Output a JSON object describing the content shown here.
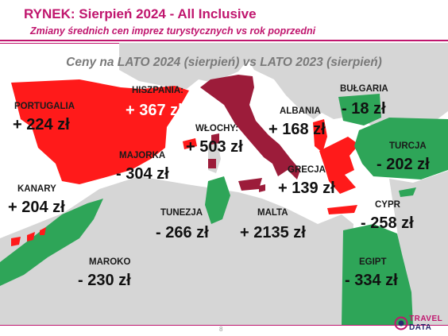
{
  "header": {
    "title": "RYNEK: Sierpień 2024 - All Inclusive",
    "subtitle": "Zmiany średnich cen imprez turystycznych vs rok poprzedni"
  },
  "map": {
    "heading": "Ceny na LATO 2024 (sierpień) vs  LATO 2023 (sierpień)",
    "colors": {
      "increase": "#ff1a1a",
      "decrease": "#2ea558",
      "italy": "#9c1c3a",
      "land": "#d6d6d6",
      "sea": "#ffffff"
    },
    "destinations": [
      {
        "name": "PORTUGALIA",
        "change": "+ 224 zł",
        "direction": "increase"
      },
      {
        "name": "HISZPANIA:",
        "change": "+ 367 zł",
        "direction": "increase"
      },
      {
        "name": "WŁOCHY:",
        "change": "+ 503 zł",
        "direction": "increase"
      },
      {
        "name": "ALBANIA",
        "change": "+ 168 zł",
        "direction": "increase"
      },
      {
        "name": "BUŁGARIA",
        "change": "- 18 zł",
        "direction": "decrease"
      },
      {
        "name": "MAJORKA",
        "change": "- 304 zł",
        "direction": "decrease"
      },
      {
        "name": "TURCJA",
        "change": "- 202 zł",
        "direction": "decrease"
      },
      {
        "name": "GRECJA",
        "change": "+ 139 zł",
        "direction": "increase"
      },
      {
        "name": "KANARY",
        "change": "+ 204 zł",
        "direction": "increase"
      },
      {
        "name": "TUNEZJA",
        "change": "- 266 zł",
        "direction": "decrease"
      },
      {
        "name": "MALTA",
        "change": "+ 2135 zł",
        "direction": "increase"
      },
      {
        "name": "CYPR",
        "change": "- 258 zł",
        "direction": "decrease"
      },
      {
        "name": "MAROKO",
        "change": "- 230 zł",
        "direction": "decrease"
      },
      {
        "name": "EGIPT",
        "change": "- 334 zł",
        "direction": "decrease"
      }
    ]
  },
  "footer": {
    "page_number": "8",
    "logo": {
      "line1": "TRAVEL",
      "line2": "DATA",
      "color1": "#c0166e",
      "color2": "#2a2a6e"
    }
  }
}
